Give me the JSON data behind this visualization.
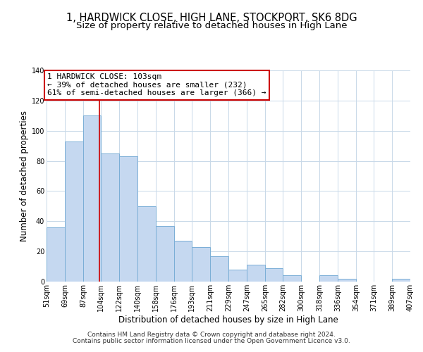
{
  "title": "1, HARDWICK CLOSE, HIGH LANE, STOCKPORT, SK6 8DG",
  "subtitle": "Size of property relative to detached houses in High Lane",
  "xlabel": "Distribution of detached houses by size in High Lane",
  "ylabel": "Number of detached properties",
  "bar_left_edges": [
    51,
    69,
    87,
    104,
    122,
    140,
    158,
    176,
    193,
    211,
    229,
    247,
    265,
    282,
    300,
    318,
    336,
    354,
    371,
    389
  ],
  "bar_widths": [
    18,
    18,
    17,
    18,
    18,
    18,
    18,
    17,
    18,
    18,
    18,
    18,
    17,
    18,
    18,
    18,
    18,
    17,
    18,
    18
  ],
  "bar_heights": [
    36,
    93,
    110,
    85,
    83,
    50,
    37,
    27,
    23,
    17,
    8,
    11,
    9,
    4,
    0,
    4,
    2,
    0,
    0,
    2
  ],
  "tick_labels": [
    "51sqm",
    "69sqm",
    "87sqm",
    "104sqm",
    "122sqm",
    "140sqm",
    "158sqm",
    "176sqm",
    "193sqm",
    "211sqm",
    "229sqm",
    "247sqm",
    "265sqm",
    "282sqm",
    "300sqm",
    "318sqm",
    "336sqm",
    "354sqm",
    "371sqm",
    "389sqm",
    "407sqm"
  ],
  "bar_color": "#c5d8f0",
  "bar_edge_color": "#7aaed6",
  "vline_x": 103,
  "vline_color": "#cc0000",
  "annotation_line1": "1 HARDWICK CLOSE: 103sqm",
  "annotation_line2": "← 39% of detached houses are smaller (232)",
  "annotation_line3": "61% of semi-detached houses are larger (366) →",
  "annotation_box_color": "#cc0000",
  "ylim": [
    0,
    140
  ],
  "yticks": [
    0,
    20,
    40,
    60,
    80,
    100,
    120,
    140
  ],
  "footer1": "Contains HM Land Registry data © Crown copyright and database right 2024.",
  "footer2": "Contains public sector information licensed under the Open Government Licence v3.0.",
  "bg_color": "#ffffff",
  "grid_color": "#c8d8e8",
  "title_fontsize": 10.5,
  "subtitle_fontsize": 9.5,
  "axis_label_fontsize": 8.5,
  "tick_fontsize": 7,
  "annotation_fontsize": 8,
  "footer_fontsize": 6.5
}
